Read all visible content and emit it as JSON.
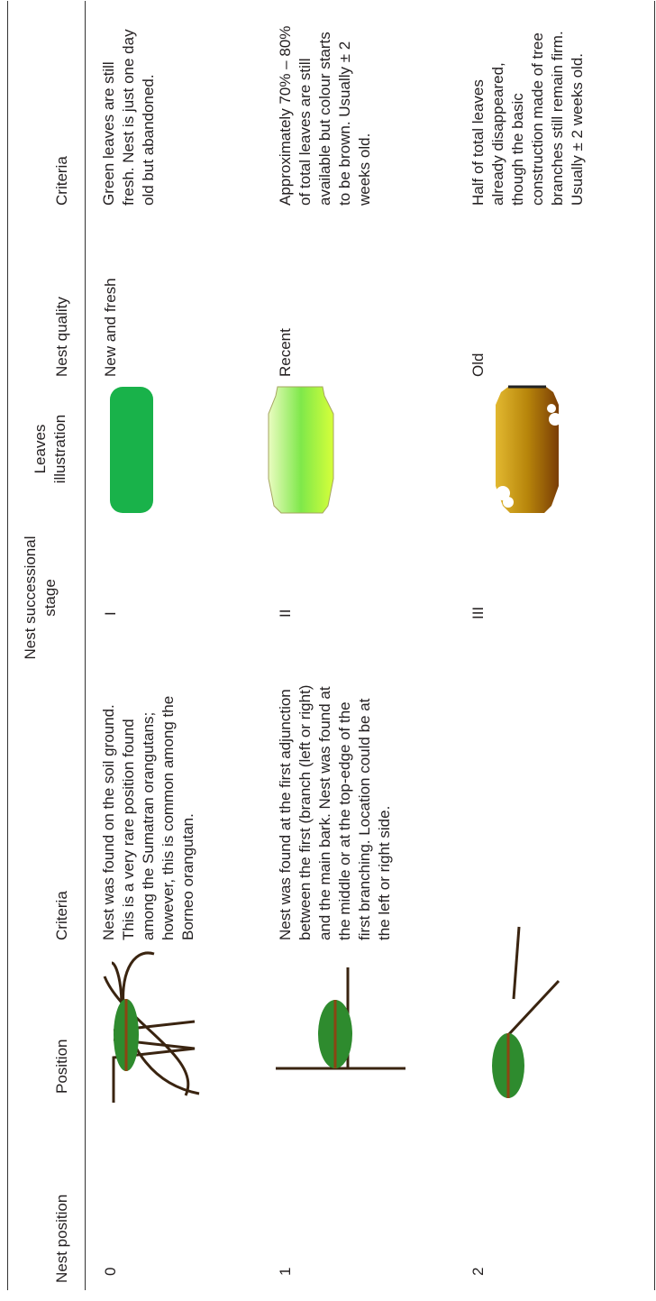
{
  "table": {
    "headers": {
      "nest_position": "Nest position",
      "position": "Position",
      "criteria_position": "Criteria",
      "stage": "Nest successional stage",
      "leaves": "Leaves illustration",
      "quality": "Nest quality",
      "criteria_quality": "Criteria"
    },
    "rows": [
      {
        "nest_position": "0",
        "criteria_position": "Nest was found on the soil ground. This is a very rare position found among the Sumatran orangutans; however, this is common among the Borneo orangutan.",
        "stage": "I",
        "quality": "New and fresh",
        "criteria_quality": "Green leaves are still fresh. Nest is just one day old but abandoned."
      },
      {
        "nest_position": "1",
        "criteria_position": "Nest was found at the first adjunction between the first (branch (left or right) and the main bark. Nest was found at the middle or at the top-edge of the first branching. Location could be at the left or right side.",
        "stage": "II",
        "quality": "Recent",
        "criteria_quality": "Approximately 70% – 80% of total leaves are still available but colour starts to be brown. Usually ± 2 weeks old."
      },
      {
        "nest_position": "2",
        "criteria_position": "",
        "stage": "III",
        "quality": "Old",
        "criteria_quality": "Half of total leaves already disappeared, though the basic construction made of tree branches still remain firm. Usually ± 2 weeks old."
      }
    ],
    "colors": {
      "nest_green": "#2e8b2e",
      "branch_brown": "#3a2410",
      "fresh_leaf": "#19b24a",
      "recent_leaf": "#7fe84a",
      "old_leaf": "#b8860b"
    }
  }
}
